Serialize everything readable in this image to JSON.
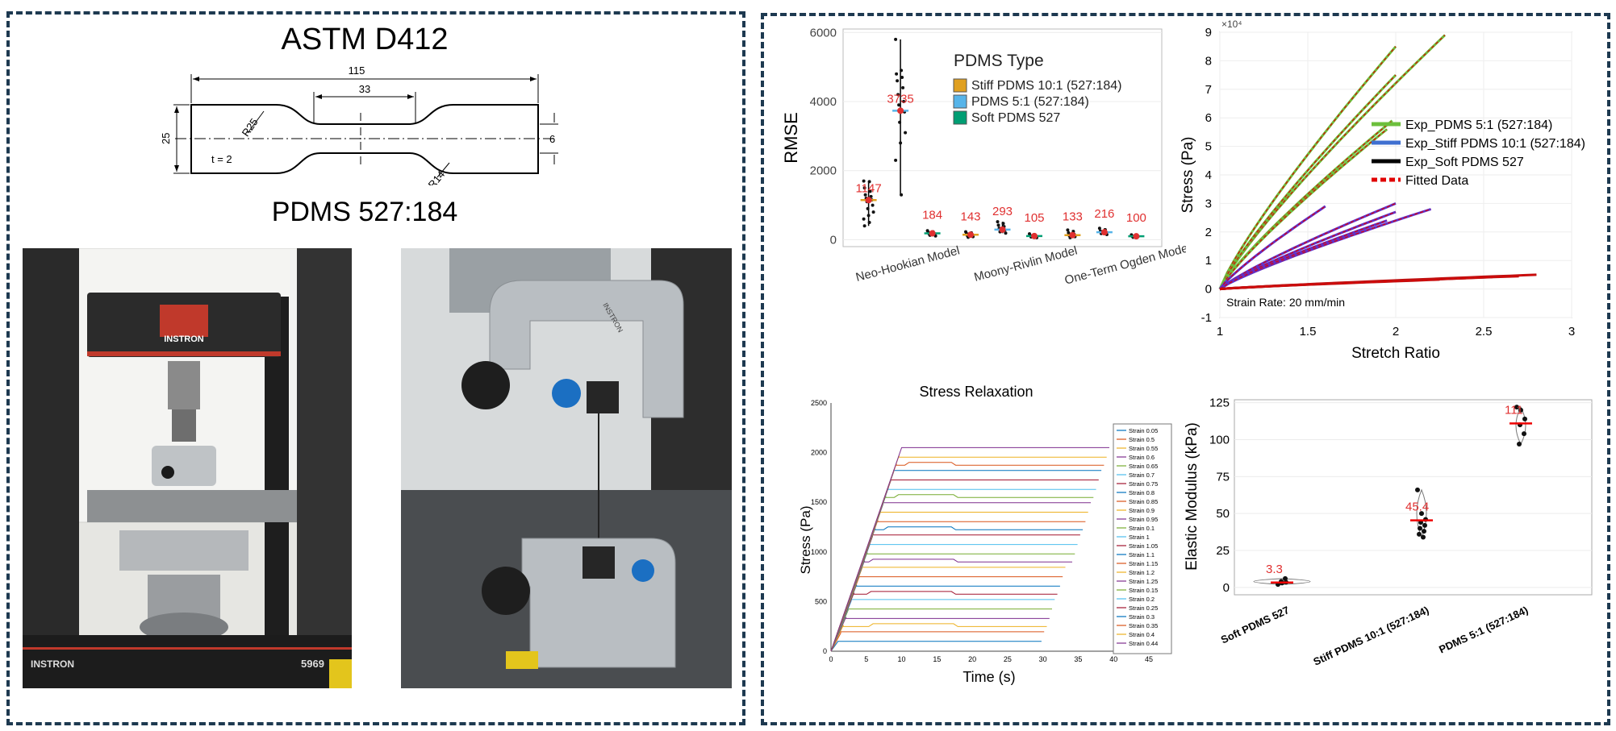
{
  "left_panel": {
    "title": "ASTM D412",
    "subtitle": "PDMS 527:184",
    "drawing": {
      "dim_total": "115",
      "dim_gauge": "33",
      "dim_width": "25",
      "dim_neck": "6",
      "radius_outer": "R25",
      "radius_inner": "R14",
      "thickness": "t = 2"
    },
    "photo1": {
      "brand": "INSTRON",
      "model": "5969",
      "base_brand": "INSTRON"
    },
    "photo2": {
      "brand": "INSTRON"
    }
  },
  "colors": {
    "stiff": "#e0a020",
    "pdms51": "#56b4e9",
    "soft": "#009e73",
    "label_red": "#e03030",
    "panel_border": "#1d3950"
  },
  "chart_data": [
    {
      "id": "rmse",
      "type": "scatter",
      "ylabel": "RMSE",
      "ylim": [
        -200,
        6100
      ],
      "yticks": [
        "0",
        "2000",
        "4000",
        "6000"
      ],
      "categories": [
        "Neo-Hookian Model",
        "Moony-Rivlin Model",
        "One-Term Ogden Model"
      ],
      "legend_title": "PDMS Type",
      "legend": [
        {
          "name": "Stiff PDMS 10:1 (527:184)",
          "color": "#e0a020"
        },
        {
          "name": "PDMS 5:1 (527:184)",
          "color": "#56b4e9"
        },
        {
          "name": "Soft PDMS 527",
          "color": "#009e73"
        }
      ],
      "groups": [
        {
          "x": 1.0,
          "mean": 1147,
          "label": "1147",
          "color": "#e0a020",
          "points": [
            1700,
            1680,
            1500,
            1400,
            1300,
            1250,
            1200,
            1150,
            1100,
            1000,
            900,
            800,
            700,
            600,
            500,
            400
          ]
        },
        {
          "x": 1.5,
          "mean": 3735,
          "label": "3735",
          "color": "#56b4e9",
          "points": [
            5800,
            4900,
            4800,
            4700,
            4600,
            4400,
            4200,
            4000,
            3900,
            3700,
            3400,
            3100,
            2800,
            2300,
            1300
          ]
        },
        {
          "x": 2.0,
          "mean": 184,
          "label": "184",
          "color": "#009e73",
          "points": [
            260,
            230,
            210,
            190,
            170,
            150,
            130,
            110
          ]
        },
        {
          "x": 2.6,
          "mean": 143,
          "label": "143",
          "color": "#e0a020",
          "points": [
            230,
            200,
            180,
            150,
            120,
            90,
            70
          ]
        },
        {
          "x": 3.1,
          "mean": 293,
          "label": "293",
          "color": "#56b4e9",
          "points": [
            520,
            470,
            420,
            380,
            330,
            280,
            230,
            190
          ]
        },
        {
          "x": 3.6,
          "mean": 105,
          "label": "105",
          "color": "#009e73",
          "points": [
            170,
            140,
            120,
            100,
            80,
            60
          ]
        },
        {
          "x": 4.2,
          "mean": 133,
          "label": "133",
          "color": "#e0a020",
          "points": [
            280,
            240,
            200,
            160,
            120,
            90,
            60
          ]
        },
        {
          "x": 4.7,
          "mean": 216,
          "label": "216",
          "color": "#56b4e9",
          "points": [
            330,
            290,
            250,
            210,
            180,
            150
          ]
        },
        {
          "x": 5.2,
          "mean": 100,
          "label": "100",
          "color": "#009e73",
          "points": [
            140,
            120,
            100,
            90,
            70
          ]
        }
      ]
    },
    {
      "id": "stress_stretch",
      "type": "line",
      "xlabel": "Stretch Ratio",
      "ylabel": "Stress (Pa)",
      "exponent_label": "×10⁴",
      "xlim": [
        1,
        3
      ],
      "ylim": [
        -1,
        9
      ],
      "xticks": [
        "1",
        "1.5",
        "2",
        "2.5",
        "3"
      ],
      "yticks": [
        "-1",
        "0",
        "1",
        "2",
        "3",
        "4",
        "5",
        "6",
        "7",
        "8",
        "9"
      ],
      "annotation": "Strain Rate: 20 mm/min",
      "legend": [
        {
          "name": "Exp_PDMS 5:1 (527:184)",
          "color": "#6cbf3c",
          "style": "solid"
        },
        {
          "name": "Exp_Stiff PDMS 10:1 (527:184)",
          "color": "#3f6fd0",
          "style": "solid"
        },
        {
          "name": "Exp_Soft PDMS 527",
          "color": "#000000",
          "style": "solid"
        },
        {
          "name": "Fitted Data",
          "color": "#e00000",
          "style": "dashed"
        }
      ],
      "series": [
        {
          "name": "Exp_PDMS 5:1 (527:184)",
          "color": "#6cbf3c",
          "curves": [
            {
              "end_x": 2.0,
              "end_y": 8.5
            },
            {
              "end_x": 2.28,
              "end_y": 8.9
            },
            {
              "end_x": 2.0,
              "end_y": 7.5
            },
            {
              "end_x": 1.98,
              "end_y": 5.9
            },
            {
              "end_x": 1.95,
              "end_y": 5.6
            }
          ]
        },
        {
          "name": "Exp_Stiff PDMS 10:1 (527:184)",
          "color": "#6030c8",
          "curves": [
            {
              "end_x": 2.0,
              "end_y": 3.0
            },
            {
              "end_x": 2.2,
              "end_y": 2.8
            },
            {
              "end_x": 2.0,
              "end_y": 2.7
            },
            {
              "end_x": 1.6,
              "end_y": 2.9
            },
            {
              "end_x": 1.95,
              "end_y": 2.4
            }
          ]
        },
        {
          "name": "Exp_Soft PDMS 527",
          "color": "#c01010",
          "curves": [
            {
              "end_x": 2.8,
              "end_y": 0.5
            },
            {
              "end_x": 2.7,
              "end_y": 0.45
            },
            {
              "end_x": 2.55,
              "end_y": 0.42
            },
            {
              "end_x": 2.4,
              "end_y": 0.38
            },
            {
              "end_x": 2.25,
              "end_y": 0.33
            }
          ]
        }
      ]
    },
    {
      "id": "stress_relaxation",
      "type": "line",
      "title": "Stress Relaxation",
      "xlabel": "Time (s)",
      "ylabel": "Stress (Pa)",
      "xlim": [
        0,
        45
      ],
      "ylim": [
        0,
        2500
      ],
      "xticks": [
        "0",
        "5",
        "10",
        "15",
        "20",
        "25",
        "30",
        "35",
        "40",
        "45"
      ],
      "yticks": [
        "0",
        "500",
        "1000",
        "1500",
        "2000",
        "2500"
      ],
      "legend": [
        "Strain 0.05",
        "Strain 0.5",
        "Strain 0.55",
        "Strain 0.6",
        "Strain 0.65",
        "Strain 0.7",
        "Strain 0.75",
        "Strain 0.8",
        "Strain 0.85",
        "Strain 0.9",
        "Strain 0.95",
        "Strain 0.1",
        "Strain 1",
        "Strain 1.05",
        "Strain 1.1",
        "Strain 1.15",
        "Strain 1.2",
        "Strain 1.25",
        "Strain 0.15",
        "Strain 0.2",
        "Strain 0.25",
        "Strain 0.3",
        "Strain 0.35",
        "Strain 0.4",
        "Strain 0.44"
      ],
      "series_colors": [
        "#0072bd",
        "#d95319",
        "#edb120",
        "#7e2f8e",
        "#77ac30",
        "#4dbeee",
        "#a2142f"
      ],
      "plateaus": {
        "first": 100,
        "last": 2050,
        "count": 25
      }
    },
    {
      "id": "elastic_modulus",
      "type": "scatter",
      "ylabel": "Elastic Modulus (kPa)",
      "ylim": [
        -5,
        127
      ],
      "yticks": [
        "0",
        "25",
        "50",
        "75",
        "100",
        "125"
      ],
      "categories": [
        "Soft PDMS 527",
        "Stiff PDMS 10:1 (527:184)",
        "PDMS 5:1 (527:184)"
      ],
      "groups": [
        {
          "mean": 3.3,
          "label": "3.3",
          "points": [
            2,
            3,
            3.5,
            4,
            6
          ]
        },
        {
          "mean": 45.4,
          "label": "45.4",
          "points": [
            66,
            50,
            46,
            44,
            42,
            40,
            38,
            36,
            34
          ]
        },
        {
          "mean": 111,
          "label": "111",
          "points": [
            122,
            120,
            114,
            110,
            104,
            97
          ]
        }
      ]
    }
  ]
}
